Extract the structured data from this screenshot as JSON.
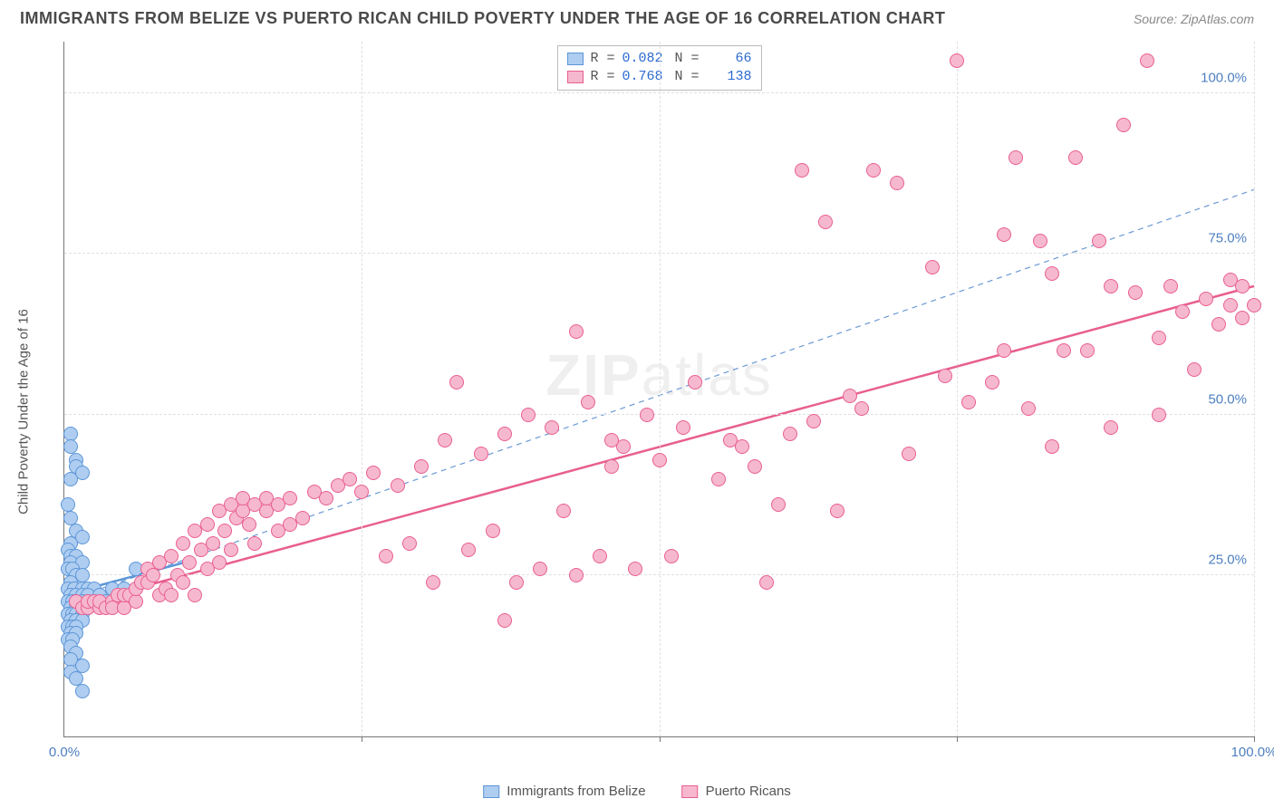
{
  "title": "IMMIGRANTS FROM BELIZE VS PUERTO RICAN CHILD POVERTY UNDER THE AGE OF 16 CORRELATION CHART",
  "source": "Source: ZipAtlas.com",
  "watermark": "ZIPatlas",
  "chart": {
    "type": "scatter",
    "background_color": "#ffffff",
    "grid_color": "#e0e0e0",
    "axis_color": "#777777",
    "label_color": "#555555",
    "tick_color": "#4d7fbf",
    "ylabel": "Child Poverty Under the Age of 16",
    "title_fontsize": 18,
    "label_fontsize": 15,
    "tick_fontsize": 15,
    "xlim": [
      0,
      100
    ],
    "ylim": [
      0,
      108
    ],
    "yticks": [
      25,
      50,
      75,
      100
    ],
    "ytick_labels": [
      "25.0%",
      "50.0%",
      "75.0%",
      "100.0%"
    ],
    "xticks": [
      0,
      100
    ],
    "xtick_labels": [
      "0.0%",
      "100.0%"
    ],
    "xgrid_at": [
      25,
      50,
      75,
      100
    ],
    "marker_radius": 8,
    "marker_border_width": 1.5,
    "marker_fill_opacity": 0.22,
    "ref_line": {
      "color": "#6b99d6",
      "dash": "6,5",
      "width": 1.2,
      "y_at_x0": 21,
      "y_at_x100": 85
    },
    "series": [
      {
        "name": "Immigrants from Belize",
        "key": "belize",
        "color": "#5d96d8",
        "fill": "#aecdf0",
        "R": "0.082",
        "N": "66",
        "trend": {
          "y_at_x0": 22,
          "y_at_xmax": 27,
          "xmax": 10,
          "width": 2.5
        },
        "points": [
          [
            0.5,
            47
          ],
          [
            0.5,
            45
          ],
          [
            1,
            43
          ],
          [
            1,
            42
          ],
          [
            1.5,
            41
          ],
          [
            0.5,
            40
          ],
          [
            0.3,
            36
          ],
          [
            0.5,
            34
          ],
          [
            1,
            32
          ],
          [
            1.5,
            31
          ],
          [
            0.5,
            30
          ],
          [
            0.3,
            29
          ],
          [
            0.5,
            28
          ],
          [
            1,
            28
          ],
          [
            0.5,
            27
          ],
          [
            1.5,
            27
          ],
          [
            0.3,
            26
          ],
          [
            0.7,
            26
          ],
          [
            1,
            25
          ],
          [
            1.5,
            25
          ],
          [
            0.5,
            24
          ],
          [
            0.3,
            23
          ],
          [
            0.8,
            23
          ],
          [
            1.5,
            23
          ],
          [
            2,
            23
          ],
          [
            2.5,
            23
          ],
          [
            0.5,
            22
          ],
          [
            1,
            22
          ],
          [
            1.5,
            22
          ],
          [
            2,
            22
          ],
          [
            0.3,
            21
          ],
          [
            0.7,
            21
          ],
          [
            1,
            21
          ],
          [
            1.5,
            21
          ],
          [
            2,
            21
          ],
          [
            2.5,
            21
          ],
          [
            3,
            22
          ],
          [
            3.5,
            21
          ],
          [
            4,
            23
          ],
          [
            0.5,
            20
          ],
          [
            1,
            20
          ],
          [
            1.5,
            20
          ],
          [
            2,
            20
          ],
          [
            0.3,
            19
          ],
          [
            0.7,
            19
          ],
          [
            1,
            19
          ],
          [
            1.5,
            19
          ],
          [
            0.5,
            18
          ],
          [
            1,
            18
          ],
          [
            1.5,
            18
          ],
          [
            0.3,
            17
          ],
          [
            0.7,
            17
          ],
          [
            1,
            17
          ],
          [
            0.5,
            16
          ],
          [
            1,
            16
          ],
          [
            0.3,
            15
          ],
          [
            0.7,
            15
          ],
          [
            0.5,
            14
          ],
          [
            1,
            13
          ],
          [
            0.5,
            12
          ],
          [
            1.5,
            11
          ],
          [
            0.5,
            10
          ],
          [
            1,
            9
          ],
          [
            1.5,
            7
          ],
          [
            5,
            23
          ],
          [
            6,
            26
          ]
        ]
      },
      {
        "name": "Puerto Ricans",
        "key": "puerto_ricans",
        "color": "#e85f8f",
        "fill": "#f6b8cf",
        "R": "0.768",
        "N": "138",
        "trend": {
          "y_at_x0": 20,
          "y_at_xmax": 70,
          "xmax": 100,
          "width": 2.5
        },
        "points": [
          [
            1,
            21
          ],
          [
            1.5,
            20
          ],
          [
            2,
            20
          ],
          [
            2,
            21
          ],
          [
            2.5,
            21
          ],
          [
            3,
            20
          ],
          [
            3,
            21
          ],
          [
            3.5,
            20
          ],
          [
            4,
            21
          ],
          [
            4,
            20
          ],
          [
            4.5,
            22
          ],
          [
            5,
            20
          ],
          [
            5,
            22
          ],
          [
            5.5,
            22
          ],
          [
            6,
            21
          ],
          [
            6,
            23
          ],
          [
            6.5,
            24
          ],
          [
            7,
            24
          ],
          [
            7,
            26
          ],
          [
            7.5,
            25
          ],
          [
            8,
            22
          ],
          [
            8,
            27
          ],
          [
            8.5,
            23
          ],
          [
            9,
            22
          ],
          [
            9,
            28
          ],
          [
            9.5,
            25
          ],
          [
            10,
            24
          ],
          [
            10,
            30
          ],
          [
            10.5,
            27
          ],
          [
            11,
            22
          ],
          [
            11,
            32
          ],
          [
            11.5,
            29
          ],
          [
            12,
            26
          ],
          [
            12,
            33
          ],
          [
            12.5,
            30
          ],
          [
            13,
            27
          ],
          [
            13,
            35
          ],
          [
            13.5,
            32
          ],
          [
            14,
            29
          ],
          [
            14,
            36
          ],
          [
            14.5,
            34
          ],
          [
            15,
            35
          ],
          [
            15,
            37
          ],
          [
            15.5,
            33
          ],
          [
            16,
            30
          ],
          [
            16,
            36
          ],
          [
            17,
            35
          ],
          [
            17,
            37
          ],
          [
            18,
            32
          ],
          [
            18,
            36
          ],
          [
            19,
            33
          ],
          [
            19,
            37
          ],
          [
            20,
            34
          ],
          [
            21,
            38
          ],
          [
            22,
            37
          ],
          [
            23,
            39
          ],
          [
            24,
            40
          ],
          [
            25,
            38
          ],
          [
            37,
            18
          ],
          [
            26,
            41
          ],
          [
            27,
            28
          ],
          [
            28,
            39
          ],
          [
            29,
            30
          ],
          [
            30,
            42
          ],
          [
            31,
            24
          ],
          [
            32,
            46
          ],
          [
            33,
            55
          ],
          [
            34,
            29
          ],
          [
            35,
            44
          ],
          [
            36,
            32
          ],
          [
            37,
            47
          ],
          [
            38,
            24
          ],
          [
            39,
            50
          ],
          [
            40,
            26
          ],
          [
            41,
            48
          ],
          [
            42,
            35
          ],
          [
            43,
            25
          ],
          [
            44,
            52
          ],
          [
            45,
            28
          ],
          [
            46,
            42
          ],
          [
            47,
            45
          ],
          [
            48,
            26
          ],
          [
            49,
            50
          ],
          [
            50,
            43
          ],
          [
            51,
            28
          ],
          [
            52,
            48
          ],
          [
            53,
            55
          ],
          [
            43,
            63
          ],
          [
            55,
            40
          ],
          [
            56,
            46
          ],
          [
            57,
            45
          ],
          [
            58,
            42
          ],
          [
            59,
            24
          ],
          [
            60,
            36
          ],
          [
            61,
            47
          ],
          [
            62,
            88
          ],
          [
            63,
            49
          ],
          [
            64,
            80
          ],
          [
            65,
            35
          ],
          [
            66,
            53
          ],
          [
            67,
            51
          ],
          [
            68,
            88
          ],
          [
            70,
            86
          ],
          [
            71,
            44
          ],
          [
            73,
            73
          ],
          [
            74,
            56
          ],
          [
            75,
            105
          ],
          [
            76,
            52
          ],
          [
            78,
            55
          ],
          [
            79,
            78
          ],
          [
            80,
            90
          ],
          [
            81,
            51
          ],
          [
            82,
            77
          ],
          [
            83,
            45
          ],
          [
            84,
            60
          ],
          [
            85,
            90
          ],
          [
            46,
            46
          ],
          [
            87,
            77
          ],
          [
            88,
            48
          ],
          [
            89,
            95
          ],
          [
            90,
            69
          ],
          [
            91,
            105
          ],
          [
            92,
            62
          ],
          [
            93,
            70
          ],
          [
            94,
            66
          ],
          [
            95,
            57
          ],
          [
            96,
            68
          ],
          [
            97,
            64
          ],
          [
            98,
            71
          ],
          [
            98,
            67
          ],
          [
            99,
            65
          ],
          [
            99,
            70
          ],
          [
            100,
            67
          ],
          [
            79,
            60
          ],
          [
            83,
            72
          ],
          [
            86,
            60
          ],
          [
            88,
            70
          ],
          [
            92,
            50
          ]
        ]
      }
    ],
    "legend_bottom": [
      {
        "sw_fill": "#aecdf0",
        "sw_border": "#5d96d8",
        "label": "Immigrants from Belize"
      },
      {
        "sw_fill": "#f6b8cf",
        "sw_border": "#e85f8f",
        "label": "Puerto Ricans"
      }
    ]
  }
}
